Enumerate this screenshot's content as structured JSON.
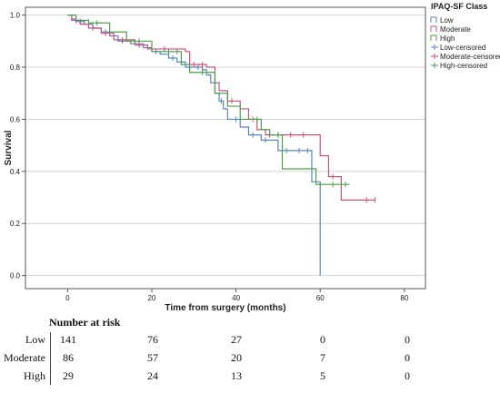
{
  "chart_data": {
    "type": "line",
    "xlabel": "Time from surgery (months)",
    "ylabel": "Survival",
    "xlim": [
      -10,
      85
    ],
    "ylim": [
      -0.05,
      1.03
    ],
    "x_ticks": [
      0,
      20,
      40,
      60,
      80
    ],
    "y_ticks": [
      0.0,
      0.2,
      0.4,
      0.6,
      0.8,
      1.0
    ],
    "y_tick_labels": [
      "0.0",
      "0.2",
      "0.4",
      "0.6",
      "0.8",
      "1.0"
    ],
    "grid": "horizontal",
    "legend_title": "IPAQ-SF Class",
    "legend_placement": "top-right",
    "legend_entries": [
      {
        "label": "Low",
        "color": "#5a82c8",
        "kind": "step"
      },
      {
        "label": "Moderate",
        "color": "#d0507a",
        "kind": "step"
      },
      {
        "label": "High",
        "color": "#4aa04a",
        "kind": "step"
      },
      {
        "label": "Low-censored",
        "color": "#5a82c8",
        "kind": "censor"
      },
      {
        "label": "Moderate-censored",
        "color": "#d0507a",
        "kind": "censor"
      },
      {
        "label": "High-censored",
        "color": "#4aa04a",
        "kind": "censor"
      }
    ],
    "series": [
      {
        "name": "Low",
        "color": "#5a82c8",
        "steps": [
          [
            0,
            1.0
          ],
          [
            1,
            0.985
          ],
          [
            2,
            0.975
          ],
          [
            4,
            0.965
          ],
          [
            6,
            0.95
          ],
          [
            8,
            0.935
          ],
          [
            10,
            0.92
          ],
          [
            12,
            0.9
          ],
          [
            15,
            0.89
          ],
          [
            18,
            0.875
          ],
          [
            20,
            0.86
          ],
          [
            22,
            0.85
          ],
          [
            24,
            0.835
          ],
          [
            26,
            0.82
          ],
          [
            28,
            0.8
          ],
          [
            32,
            0.79
          ],
          [
            33,
            0.77
          ],
          [
            34,
            0.74
          ],
          [
            35,
            0.7
          ],
          [
            36,
            0.67
          ],
          [
            37,
            0.64
          ],
          [
            38,
            0.6
          ],
          [
            41,
            0.57
          ],
          [
            43,
            0.54
          ],
          [
            46,
            0.52
          ],
          [
            50,
            0.48
          ],
          [
            58,
            0.36
          ],
          [
            60,
            0.0
          ]
        ],
        "end_x": 60,
        "censored": [
          [
            3,
            0.975
          ],
          [
            9,
            0.935
          ],
          [
            13,
            0.9
          ],
          [
            21,
            0.86
          ],
          [
            25,
            0.835
          ],
          [
            29,
            0.8
          ],
          [
            31,
            0.8
          ],
          [
            36.5,
            0.67
          ],
          [
            40,
            0.6
          ],
          [
            44,
            0.54
          ],
          [
            47,
            0.52
          ],
          [
            52,
            0.48
          ],
          [
            55,
            0.48
          ],
          [
            57,
            0.48
          ]
        ]
      },
      {
        "name": "Moderate",
        "color": "#d0507a",
        "steps": [
          [
            0,
            1.0
          ],
          [
            1,
            0.98
          ],
          [
            3,
            0.965
          ],
          [
            5,
            0.95
          ],
          [
            8,
            0.93
          ],
          [
            11,
            0.905
          ],
          [
            16,
            0.885
          ],
          [
            19,
            0.87
          ],
          [
            21,
            0.87
          ],
          [
            28,
            0.86
          ],
          [
            29,
            0.81
          ],
          [
            33,
            0.8
          ],
          [
            35,
            0.74
          ],
          [
            36,
            0.71
          ],
          [
            38,
            0.67
          ],
          [
            41,
            0.64
          ],
          [
            43,
            0.6
          ],
          [
            45,
            0.56
          ],
          [
            47,
            0.54
          ],
          [
            60,
            0.46
          ],
          [
            62,
            0.38
          ],
          [
            65,
            0.29
          ]
        ],
        "end_x": 73,
        "censored": [
          [
            2,
            0.98
          ],
          [
            6,
            0.95
          ],
          [
            9,
            0.93
          ],
          [
            13,
            0.905
          ],
          [
            17,
            0.885
          ],
          [
            23,
            0.87
          ],
          [
            26,
            0.86
          ],
          [
            30,
            0.81
          ],
          [
            32,
            0.81
          ],
          [
            39,
            0.67
          ],
          [
            44,
            0.6
          ],
          [
            48,
            0.54
          ],
          [
            50,
            0.54
          ],
          [
            53,
            0.54
          ],
          [
            56,
            0.54
          ],
          [
            63,
            0.38
          ],
          [
            71,
            0.29
          ],
          [
            73,
            0.29
          ]
        ]
      },
      {
        "name": "High",
        "color": "#4aa04a",
        "steps": [
          [
            0,
            1.0
          ],
          [
            2,
            0.98
          ],
          [
            5,
            0.97
          ],
          [
            10,
            0.935
          ],
          [
            14,
            0.9
          ],
          [
            20,
            0.86
          ],
          [
            27,
            0.81
          ],
          [
            29,
            0.78
          ],
          [
            35,
            0.7
          ],
          [
            38,
            0.65
          ],
          [
            41,
            0.6
          ],
          [
            46,
            0.56
          ],
          [
            48,
            0.54
          ],
          [
            51,
            0.41
          ],
          [
            59,
            0.35
          ]
        ],
        "end_x": 67,
        "censored": [
          [
            7,
            0.97
          ],
          [
            17,
            0.9
          ],
          [
            24,
            0.86
          ],
          [
            32,
            0.78
          ],
          [
            45,
            0.6
          ],
          [
            50,
            0.54
          ],
          [
            60,
            0.35
          ],
          [
            63,
            0.35
          ],
          [
            66,
            0.35
          ]
        ]
      }
    ]
  },
  "risk_table": {
    "title": "Number at risk",
    "times": [
      0,
      20,
      40,
      60,
      80
    ],
    "rows": [
      {
        "label": "Low",
        "values": [
          "141",
          "76",
          "27",
          "0",
          "0"
        ]
      },
      {
        "label": "Moderate",
        "values": [
          "86",
          "57",
          "20",
          "7",
          "0"
        ]
      },
      {
        "label": "High",
        "values": [
          "29",
          "24",
          "13",
          "5",
          "0"
        ]
      }
    ]
  }
}
